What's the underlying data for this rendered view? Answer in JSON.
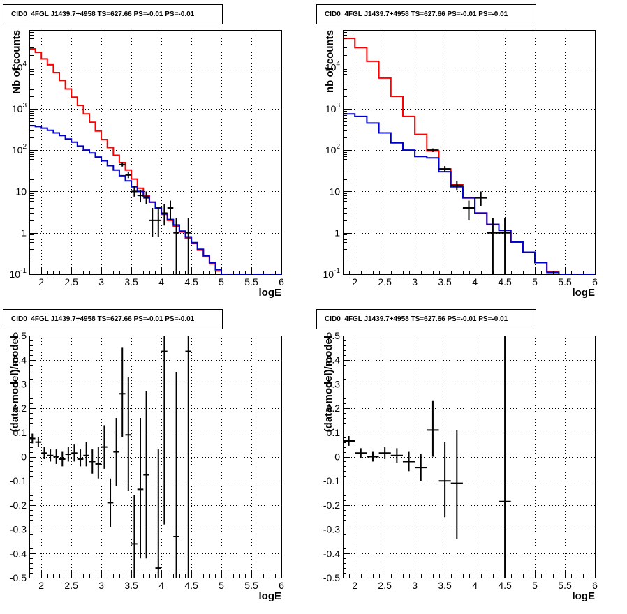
{
  "panels": [
    {
      "title": "CID0_4FGL J1439.7+4958 TS=627.66 PS=-0.01 PS=-0.01",
      "chart_data": {
        "type": "line",
        "xlabel": "logE",
        "ylabel": "Nb of counts",
        "xlim": [
          1.8,
          6.0
        ],
        "ylim": [
          0.1,
          80000
        ],
        "yscale": "log",
        "grid": true,
        "xticks": [
          "2",
          "2.5",
          "3",
          "3.5",
          "4",
          "4.5",
          "5",
          "5.5",
          "6"
        ],
        "xtick_values": [
          2,
          2.5,
          3,
          3.5,
          4,
          4.5,
          5,
          5.5,
          6
        ],
        "yticks": [
          {
            "base": "10",
            "exp": "-1",
            "value": 0.1
          },
          {
            "base": "1",
            "exp": "",
            "value": 1
          },
          {
            "base": "10",
            "exp": "",
            "value": 10
          },
          {
            "base": "10",
            "exp": "2",
            "value": 100
          },
          {
            "base": "10",
            "exp": "3",
            "value": 1000
          },
          {
            "base": "10",
            "exp": "4",
            "value": 10000
          }
        ],
        "colors": {
          "total_model": "#ff0000",
          "source_model": "#0000cc",
          "data": "#000000"
        },
        "bin_edges": [
          1.8,
          1.9,
          2.0,
          2.1,
          2.2,
          2.3,
          2.4,
          2.5,
          2.6,
          2.7,
          2.8,
          2.9,
          3.0,
          3.1,
          3.2,
          3.3,
          3.4,
          3.5,
          3.6,
          3.7,
          3.8,
          3.9,
          4.0,
          4.1,
          4.2,
          4.3,
          4.4,
          4.5,
          4.6,
          4.7,
          4.8,
          4.9,
          5.0,
          5.1,
          5.2,
          5.3,
          5.4,
          5.5,
          5.6,
          5.7,
          5.8,
          5.9,
          6.0
        ],
        "series": [
          {
            "style": "step",
            "color_key": "total_model",
            "values": [
              28000,
              23000,
              16000,
              11500,
              7500,
              4800,
              3000,
              1900,
              1200,
              750,
              470,
              290,
              180,
              115,
              75,
              50,
              33,
              20,
              12,
              8,
              5.5,
              4,
              2.8,
              2.0,
              1.45,
              1.05,
              0.75,
              0.55,
              0.38,
              0.27,
              0.18,
              0.12,
              0.1,
              0.1,
              0.1,
              0.1,
              0.1,
              0.1,
              0.1,
              0.1,
              0.1,
              0.1
            ]
          },
          {
            "style": "step",
            "color_key": "source_model",
            "values": [
              390,
              370,
              340,
              300,
              260,
              225,
              185,
              155,
              125,
              100,
              85,
              68,
              55,
              42,
              33,
              24,
              18,
              13,
              10,
              7.5,
              5.5,
              4,
              2.9,
              2.1,
              1.55,
              1.1,
              0.8,
              0.58,
              0.4,
              0.28,
              0.19,
              0.13,
              0.1,
              0.1,
              0.1,
              0.1,
              0.1,
              0.1,
              0.1,
              0.1,
              0.1,
              0.1
            ]
          }
        ],
        "points": [
          {
            "x": 3.35,
            "y": 45,
            "xerr": 0.05,
            "ylo": 40,
            "yhi": 51
          },
          {
            "x": 3.45,
            "y": 25,
            "xerr": 0.05,
            "ylo": 21,
            "yhi": 30
          },
          {
            "x": 3.55,
            "y": 10,
            "xerr": 0.05,
            "ylo": 7.5,
            "yhi": 13.5
          },
          {
            "x": 3.65,
            "y": 8,
            "xerr": 0.05,
            "ylo": 5.5,
            "yhi": 11
          },
          {
            "x": 3.75,
            "y": 7,
            "xerr": 0.05,
            "ylo": 5,
            "yhi": 10
          },
          {
            "x": 3.85,
            "y": 2,
            "xerr": 0.05,
            "ylo": 0.8,
            "yhi": 4
          },
          {
            "x": 3.95,
            "y": 2,
            "xerr": 0.05,
            "ylo": 0.8,
            "yhi": 4
          },
          {
            "x": 4.05,
            "y": 3,
            "xerr": 0.05,
            "ylo": 1.5,
            "yhi": 5
          },
          {
            "x": 4.15,
            "y": 4,
            "xerr": 0.05,
            "ylo": 2,
            "yhi": 6
          },
          {
            "x": 4.25,
            "y": 1,
            "xerr": 0.05,
            "ylo": 0.1,
            "yhi": 2.3
          },
          {
            "x": 4.45,
            "y": 1,
            "xerr": 0.05,
            "ylo": 0.1,
            "yhi": 2.3
          }
        ]
      }
    },
    {
      "title": "CID0_4FGL J1439.7+4958 TS=627.66 PS=-0.01 PS=-0.01",
      "chart_data": {
        "type": "line",
        "xlabel": "logE",
        "ylabel": "nb of counts",
        "xlim": [
          1.8,
          6.0
        ],
        "ylim": [
          0.1,
          80000
        ],
        "yscale": "log",
        "grid": true,
        "xticks": [
          "2",
          "2.5",
          "3",
          "3.5",
          "4",
          "4.5",
          "5",
          "5.5",
          "6"
        ],
        "xtick_values": [
          2,
          2.5,
          3,
          3.5,
          4,
          4.5,
          5,
          5.5,
          6
        ],
        "yticks": [
          {
            "base": "10",
            "exp": "-1",
            "value": 0.1
          },
          {
            "base": "1",
            "exp": "",
            "value": 1
          },
          {
            "base": "10",
            "exp": "",
            "value": 10
          },
          {
            "base": "10",
            "exp": "2",
            "value": 100
          },
          {
            "base": "10",
            "exp": "3",
            "value": 1000
          },
          {
            "base": "10",
            "exp": "4",
            "value": 10000
          }
        ],
        "colors": {
          "total_model": "#ff0000",
          "source_model": "#0000cc",
          "data": "#000000"
        },
        "bin_edges": [
          1.8,
          2.0,
          2.2,
          2.4,
          2.6,
          2.8,
          3.0,
          3.2,
          3.4,
          3.6,
          3.8,
          4.0,
          4.2,
          4.4,
          4.6,
          4.8,
          5.0,
          5.2,
          5.4,
          5.6,
          5.8,
          6.0
        ],
        "series": [
          {
            "style": "step",
            "color_key": "total_model",
            "values": [
              50000,
              30000,
              14000,
              5500,
              2000,
              650,
              240,
              95,
              35,
              15,
              7,
              3,
              1.6,
              1.15,
              0.6,
              0.34,
              0.19,
              0.115,
              0.1,
              0.1,
              0.1
            ]
          },
          {
            "style": "step",
            "color_key": "source_model",
            "values": [
              750,
              650,
              450,
              260,
              150,
              100,
              70,
              65,
              30,
              13,
              7,
              3,
              1.6,
              1.15,
              0.6,
              0.34,
              0.19,
              0.11,
              0.1,
              0.1,
              0.1
            ]
          }
        ],
        "points": [
          {
            "x": 3.3,
            "y": 100,
            "xerr": 0.1,
            "ylo": 90,
            "yhi": 110
          },
          {
            "x": 3.5,
            "y": 35,
            "xerr": 0.1,
            "ylo": 29,
            "yhi": 41
          },
          {
            "x": 3.7,
            "y": 14,
            "xerr": 0.1,
            "ylo": 10.5,
            "yhi": 18
          },
          {
            "x": 3.9,
            "y": 4,
            "xerr": 0.1,
            "ylo": 2,
            "yhi": 6
          },
          {
            "x": 4.1,
            "y": 7,
            "xerr": 0.1,
            "ylo": 4.5,
            "yhi": 10
          },
          {
            "x": 4.3,
            "y": 1,
            "xerr": 0.1,
            "ylo": 0.1,
            "yhi": 2.3
          },
          {
            "x": 4.5,
            "y": 1,
            "xerr": 0.1,
            "ylo": 0.1,
            "yhi": 2.3
          }
        ]
      }
    },
    {
      "title": "CID0_4FGL J1439.7+4958 TS=627.66 PS=-0.01 PS=-0.01",
      "chart_data": {
        "type": "scatter",
        "xlabel": "logE",
        "ylabel": "(data-model)/model",
        "xlim": [
          1.8,
          6.0
        ],
        "ylim": [
          -0.5,
          0.5
        ],
        "yscale": "linear",
        "grid": true,
        "xticks": [
          "2",
          "2.5",
          "3",
          "3.5",
          "4",
          "4.5",
          "5",
          "5.5",
          "6"
        ],
        "xtick_values": [
          2,
          2.5,
          3,
          3.5,
          4,
          4.5,
          5,
          5.5,
          6
        ],
        "yticks": [
          {
            "base": "-0.5",
            "exp": "",
            "value": -0.5
          },
          {
            "base": "-0.4",
            "exp": "",
            "value": -0.4
          },
          {
            "base": "-0.3",
            "exp": "",
            "value": -0.3
          },
          {
            "base": "-0.2",
            "exp": "",
            "value": -0.2
          },
          {
            "base": "-0.1",
            "exp": "",
            "value": -0.1
          },
          {
            "base": "0",
            "exp": "",
            "value": 0
          },
          {
            "base": "0.1",
            "exp": "",
            "value": 0.1
          },
          {
            "base": "0.2",
            "exp": "",
            "value": 0.2
          },
          {
            "base": "0.3",
            "exp": "",
            "value": 0.3
          },
          {
            "base": "0.4",
            "exp": "",
            "value": 0.4
          },
          {
            "base": "0.5",
            "exp": "",
            "value": 0.5
          }
        ],
        "colors": {
          "data": "#000000"
        },
        "points": [
          {
            "x": 1.85,
            "y": 0.075,
            "xerr": 0.05,
            "ylo": 0.055,
            "yhi": 0.095
          },
          {
            "x": 1.95,
            "y": 0.06,
            "xerr": 0.05,
            "ylo": 0.04,
            "yhi": 0.08
          },
          {
            "x": 2.05,
            "y": 0.015,
            "xerr": 0.05,
            "ylo": -0.01,
            "yhi": 0.04
          },
          {
            "x": 2.15,
            "y": 0.005,
            "xerr": 0.05,
            "ylo": -0.02,
            "yhi": 0.03
          },
          {
            "x": 2.25,
            "y": 0.0,
            "xerr": 0.05,
            "ylo": -0.03,
            "yhi": 0.03
          },
          {
            "x": 2.35,
            "y": -0.01,
            "xerr": 0.05,
            "ylo": -0.04,
            "yhi": 0.02
          },
          {
            "x": 2.45,
            "y": 0.01,
            "xerr": 0.05,
            "ylo": -0.02,
            "yhi": 0.04
          },
          {
            "x": 2.55,
            "y": 0.015,
            "xerr": 0.05,
            "ylo": -0.02,
            "yhi": 0.05
          },
          {
            "x": 2.65,
            "y": -0.01,
            "xerr": 0.05,
            "ylo": -0.04,
            "yhi": 0.03
          },
          {
            "x": 2.75,
            "y": 0.005,
            "xerr": 0.05,
            "ylo": -0.04,
            "yhi": 0.06
          },
          {
            "x": 2.85,
            "y": -0.02,
            "xerr": 0.05,
            "ylo": -0.07,
            "yhi": 0.03
          },
          {
            "x": 2.95,
            "y": -0.03,
            "xerr": 0.05,
            "ylo": -0.09,
            "yhi": 0.04
          },
          {
            "x": 3.05,
            "y": 0.04,
            "xerr": 0.05,
            "ylo": -0.05,
            "yhi": 0.13
          },
          {
            "x": 3.15,
            "y": -0.19,
            "xerr": 0.05,
            "ylo": -0.29,
            "yhi": -0.09
          },
          {
            "x": 3.25,
            "y": 0.02,
            "xerr": 0.05,
            "ylo": -0.12,
            "yhi": 0.16
          },
          {
            "x": 3.35,
            "y": 0.26,
            "xerr": 0.05,
            "ylo": 0.08,
            "yhi": 0.45
          },
          {
            "x": 3.45,
            "y": 0.09,
            "xerr": 0.05,
            "ylo": -0.14,
            "yhi": 0.33
          },
          {
            "x": 3.55,
            "y": -0.36,
            "xerr": 0.05,
            "ylo": -0.5,
            "yhi": -0.16
          },
          {
            "x": 3.65,
            "y": -0.135,
            "xerr": 0.05,
            "ylo": -0.42,
            "yhi": 0.16
          },
          {
            "x": 3.75,
            "y": -0.075,
            "xerr": 0.05,
            "ylo": -0.42,
            "yhi": 0.27
          },
          {
            "x": 3.95,
            "y": -0.46,
            "xerr": 0.05,
            "ylo": -0.5,
            "yhi": 0.03
          },
          {
            "x": 4.05,
            "y": 0.435,
            "xerr": 0.05,
            "ylo": -0.28,
            "yhi": 0.5
          },
          {
            "x": 4.25,
            "y": -0.33,
            "xerr": 0.05,
            "ylo": -0.5,
            "yhi": 0.35
          },
          {
            "x": 4.45,
            "y": 0.435,
            "xerr": 0.05,
            "ylo": -0.5,
            "yhi": 0.5
          }
        ]
      }
    },
    {
      "title": "CID0_4FGL J1439.7+4958 TS=627.66 PS=-0.01 PS=-0.01",
      "chart_data": {
        "type": "scatter",
        "xlabel": "logE",
        "ylabel": "(data-model)/model",
        "xlim": [
          1.8,
          6.0
        ],
        "ylim": [
          -0.5,
          0.5
        ],
        "yscale": "linear",
        "grid": true,
        "xticks": [
          "2",
          "2.5",
          "3",
          "3.5",
          "4",
          "4.5",
          "5",
          "5.5",
          "6"
        ],
        "xtick_values": [
          2,
          2.5,
          3,
          3.5,
          4,
          4.5,
          5,
          5.5,
          6
        ],
        "yticks": [
          {
            "base": "-0.5",
            "exp": "",
            "value": -0.5
          },
          {
            "base": "-0.4",
            "exp": "",
            "value": -0.4
          },
          {
            "base": "-0.3",
            "exp": "",
            "value": -0.3
          },
          {
            "base": "-0.2",
            "exp": "",
            "value": -0.2
          },
          {
            "base": "-0.1",
            "exp": "",
            "value": -0.1
          },
          {
            "base": "0",
            "exp": "",
            "value": 0
          },
          {
            "base": "0.1",
            "exp": "",
            "value": 0.1
          },
          {
            "base": "0.2",
            "exp": "",
            "value": 0.2
          },
          {
            "base": "0.3",
            "exp": "",
            "value": 0.3
          },
          {
            "base": "0.4",
            "exp": "",
            "value": 0.4
          },
          {
            "base": "0.5",
            "exp": "",
            "value": 0.5
          }
        ],
        "colors": {
          "data": "#000000"
        },
        "points": [
          {
            "x": 1.9,
            "y": 0.065,
            "xerr": 0.1,
            "ylo": 0.045,
            "yhi": 0.085
          },
          {
            "x": 2.1,
            "y": 0.015,
            "xerr": 0.1,
            "ylo": -0.005,
            "yhi": 0.035
          },
          {
            "x": 2.3,
            "y": 0.0,
            "xerr": 0.1,
            "ylo": -0.02,
            "yhi": 0.02
          },
          {
            "x": 2.5,
            "y": 0.015,
            "xerr": 0.1,
            "ylo": -0.01,
            "yhi": 0.04
          },
          {
            "x": 2.7,
            "y": 0.005,
            "xerr": 0.1,
            "ylo": -0.025,
            "yhi": 0.035
          },
          {
            "x": 2.9,
            "y": -0.02,
            "xerr": 0.1,
            "ylo": -0.06,
            "yhi": 0.02
          },
          {
            "x": 3.1,
            "y": -0.045,
            "xerr": 0.1,
            "ylo": -0.1,
            "yhi": 0.01
          },
          {
            "x": 3.3,
            "y": 0.11,
            "xerr": 0.1,
            "ylo": 0.0,
            "yhi": 0.23
          },
          {
            "x": 3.5,
            "y": -0.1,
            "xerr": 0.1,
            "ylo": -0.25,
            "yhi": 0.06
          },
          {
            "x": 3.7,
            "y": -0.11,
            "xerr": 0.1,
            "ylo": -0.34,
            "yhi": 0.11
          },
          {
            "x": 4.5,
            "y": -0.185,
            "xerr": 0.1,
            "ylo": -0.5,
            "yhi": 0.5
          }
        ]
      }
    }
  ]
}
